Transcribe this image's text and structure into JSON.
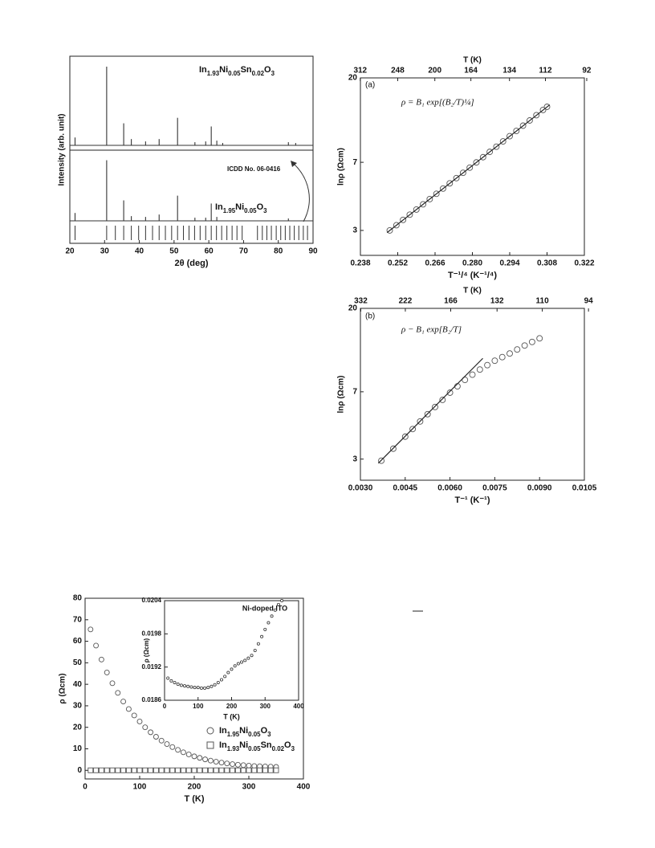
{
  "chart_data": [
    {
      "type": "line",
      "xlabel": "2θ (deg)",
      "ylabel": "Intensity (arb. unit)",
      "xlim": [
        20,
        90
      ],
      "xticks": [
        20,
        30,
        40,
        50,
        60,
        70,
        80,
        90
      ],
      "ylim": [
        0,
        100
      ],
      "series": [
        {
          "name": "In1.93Ni0.05Sn0.02O3",
          "color": "#333333",
          "x": [
            21.5,
            30.6,
            35.5,
            37.7,
            41.8,
            45.7,
            51.0,
            56.0,
            59.1,
            60.7,
            62.3,
            64.0,
            82.9,
            85.0
          ],
          "values": [
            10,
            100,
            28,
            8,
            5,
            8,
            35,
            4,
            5,
            24,
            6,
            3,
            4,
            3
          ]
        },
        {
          "name": "In1.95Ni0.05O3",
          "color": "#333333",
          "x": [
            21.5,
            30.6,
            35.5,
            37.7,
            41.8,
            45.7,
            51.0,
            56.0,
            59.1,
            60.7,
            62.3,
            82.9
          ],
          "values": [
            10,
            77,
            26,
            6,
            5,
            8,
            32,
            4,
            4,
            22,
            5,
            3
          ]
        }
      ],
      "reference": {
        "label": "ICDD No. 06-0416",
        "x": [
          21.5,
          30.6,
          33.1,
          35.5,
          37.7,
          39.8,
          41.8,
          43.8,
          45.7,
          47.5,
          49.3,
          51.0,
          52.7,
          54.3,
          55.9,
          57.5,
          59.1,
          60.7,
          62.2,
          63.7,
          65.2,
          66.7,
          68.1,
          69.6,
          74.0,
          75.4,
          76.7,
          78.0,
          79.4,
          80.7,
          82.0,
          83.3,
          84.6,
          85.9,
          87.2,
          88.4
        ]
      }
    },
    {
      "type": "scatter",
      "label": "(a)",
      "equation": "ρ = B₁ exp[(B₂/T)¼]",
      "xlabel": "T⁻¹/⁴ (K⁻¹/⁴)",
      "ylabel": "lnρ (Ωcm)",
      "x2label": "T (K)",
      "xlim": [
        0.238,
        0.322
      ],
      "xticks": [
        0.238,
        0.252,
        0.266,
        {
          "value": 0.28,
          "label": "0.280"
        },
        0.294,
        0.308,
        0.322
      ],
      "x2ticks": [
        312,
        248,
        200,
        164,
        134,
        112,
        92
      ],
      "ylim": [
        2.2,
        20
      ],
      "log_y": true,
      "yticks": [
        3,
        7,
        20
      ],
      "series": [
        {
          "marker": "circle",
          "color": "#555555",
          "x": [
            0.249,
            0.2515,
            0.254,
            0.2565,
            0.259,
            0.2615,
            0.264,
            0.2665,
            0.269,
            0.2715,
            0.274,
            0.2765,
            0.279,
            0.2815,
            0.284,
            0.2865,
            0.289,
            0.2915,
            0.294,
            0.2965,
            0.299,
            0.3015,
            0.304,
            0.3065,
            0.308
          ],
          "values": [
            3.0,
            3.2,
            3.42,
            3.65,
            3.89,
            4.15,
            4.43,
            4.73,
            5.05,
            5.39,
            5.75,
            6.14,
            6.55,
            6.99,
            7.46,
            7.97,
            8.5,
            9.08,
            9.69,
            10.34,
            11.04,
            11.78,
            12.58,
            13.42,
            13.96
          ]
        },
        {
          "marker": "line",
          "color": "#222222",
          "x": [
            0.248,
            0.309
          ],
          "values": [
            2.92,
            14.3
          ]
        }
      ]
    },
    {
      "type": "scatter",
      "label": "(b)",
      "equation": "ρ − B₁ exp[B₂/T]",
      "xlabel": "T⁻¹ (K⁻¹)",
      "ylabel": "lnρ (Ωcm)",
      "x2label": "T (K)",
      "xlim": [
        0.003,
        0.0105
      ],
      "xticks": [
        {
          "value": 0.003,
          "label": "0.0030"
        },
        0.0045,
        {
          "value": 0.006,
          "label": "0.0060"
        },
        0.0075,
        {
          "value": 0.009,
          "label": "0.0090"
        },
        0.0105
      ],
      "x2ticks": [
        332,
        222,
        166,
        132,
        110,
        94
      ],
      "ylim": [
        2.3,
        20
      ],
      "log_y": true,
      "yticks": [
        3,
        7,
        20
      ],
      "series": [
        {
          "marker": "circle",
          "color": "#555555",
          "x": [
            0.0037,
            0.0041,
            0.0045,
            0.00475,
            0.005,
            0.00525,
            0.0055,
            0.00575,
            0.006,
            0.00625,
            0.0065,
            0.00675,
            0.007,
            0.00725,
            0.0075,
            0.00775,
            0.008,
            0.00825,
            0.0085,
            0.00875,
            0.009
          ],
          "values": [
            2.94,
            3.42,
            3.98,
            4.38,
            4.82,
            5.28,
            5.78,
            6.32,
            6.92,
            7.5,
            8.13,
            8.68,
            9.26,
            9.79,
            10.35,
            10.83,
            11.33,
            11.92,
            12.53,
            13.11,
            13.71
          ]
        },
        {
          "marker": "line",
          "color": "#222222",
          "x": [
            0.0036,
            0.0071
          ],
          "values": [
            2.85,
            10.66
          ]
        }
      ]
    },
    {
      "type": "scatter",
      "xlabel": "T (K)",
      "ylabel": "ρ (Ωcm)",
      "xlim": [
        0,
        400
      ],
      "xticks": [
        0,
        100,
        200,
        300,
        400
      ],
      "ylim": [
        -4,
        80
      ],
      "yticks": [
        0,
        10,
        20,
        30,
        40,
        50,
        60,
        70,
        80
      ],
      "x": [
        10,
        20,
        30,
        40,
        50,
        60,
        70,
        80,
        90,
        100,
        110,
        120,
        130,
        140,
        150,
        160,
        170,
        180,
        190,
        200,
        210,
        220,
        230,
        240,
        250,
        260,
        270,
        280,
        290,
        300,
        310,
        320,
        330,
        340,
        350
      ],
      "series": [
        {
          "name": "In1.95Ni0.05O3",
          "marker": "circle",
          "color": "#555555",
          "values": [
            65.5,
            58,
            51.5,
            45.5,
            40.5,
            36,
            32,
            28.5,
            25.5,
            22.7,
            20,
            17.7,
            15.6,
            13.8,
            12.2,
            10.8,
            9.5,
            8.4,
            7.4,
            6.5,
            5.8,
            5.1,
            4.5,
            4.0,
            3.6,
            3.2,
            2.9,
            2.6,
            2.4,
            2.2,
            2.0,
            1.9,
            1.8,
            1.7,
            1.6
          ]
        },
        {
          "name": "In1.93Ni0.05Sn0.02O3",
          "marker": "square",
          "color": "#555555",
          "values": [
            0.019,
            0.01895,
            0.01892,
            0.01889,
            0.01887,
            0.01886,
            0.01885,
            0.01884,
            0.01883,
            0.01883,
            0.01882,
            0.01882,
            0.01883,
            0.01885,
            0.01888,
            0.01892,
            0.01897,
            0.01903,
            0.0191,
            0.01916,
            0.01922,
            0.01926,
            0.01929,
            0.01932,
            0.01936,
            0.01941,
            0.0195,
            0.01962,
            0.01975,
            0.01988,
            0.02,
            0.02012,
            0.02023,
            0.02033,
            0.0204
          ]
        }
      ],
      "inset": {
        "title": "Ni-doped ITO",
        "xlabel": "T (K)",
        "ylabel": "ρ (Ωcm)",
        "xlim": [
          0,
          400
        ],
        "xticks": [
          0,
          100,
          200,
          300,
          400
        ],
        "ylim": [
          0.0186,
          0.0204
        ],
        "yticks": [
          0.0186,
          0.0192,
          0.0198,
          0.0204
        ]
      }
    }
  ]
}
